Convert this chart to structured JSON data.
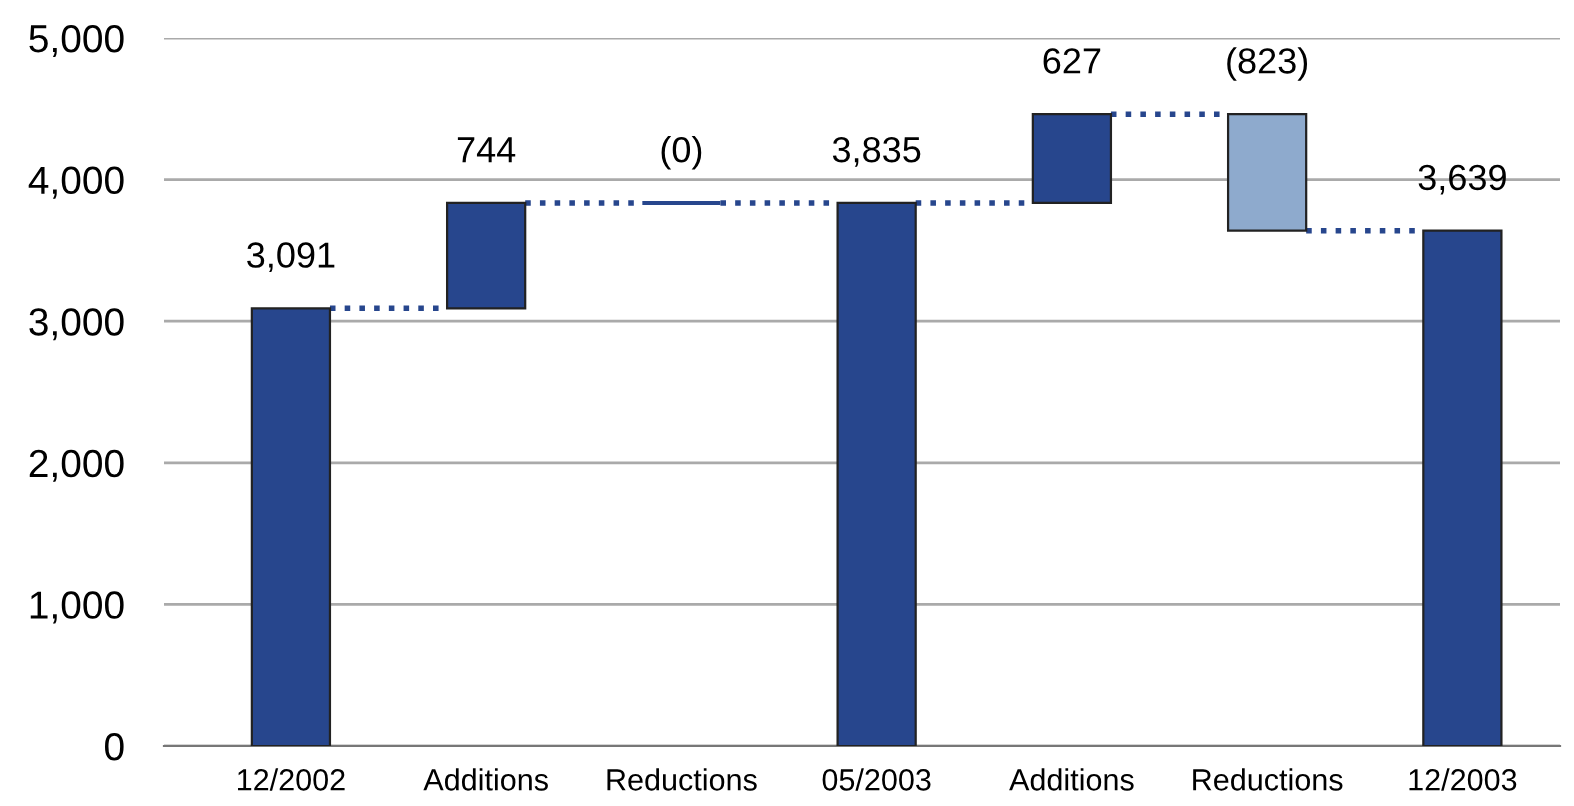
{
  "chart_data": {
    "type": "bar",
    "categories": [
      "12/2002",
      "Additions",
      "Reductions",
      "05/2003",
      "Additions",
      "Reductions",
      "12/2003"
    ],
    "values": [
      3091,
      744,
      0,
      3835,
      627,
      -823,
      3639
    ],
    "base": [
      0,
      3091,
      3835,
      0,
      3835,
      4462,
      0
    ],
    "colors": [
      "#27468d",
      "#27468d",
      "#27468d",
      "#27468d",
      "#27468d",
      "#8eaacd",
      "#27468d"
    ],
    "value_labels": [
      "3,091",
      "744",
      "(0)",
      "3,835",
      "627",
      "(823)",
      "3,639"
    ],
    "ylim": [
      0,
      5000
    ],
    "yticks": [
      {
        "value": 0,
        "label": "0"
      },
      {
        "value": 1000,
        "label": "1,000"
      },
      {
        "value": 2000,
        "label": "2,000"
      },
      {
        "value": 3000,
        "label": "3,000"
      },
      {
        "value": 4000,
        "label": "4,000"
      },
      {
        "value": 5000,
        "label": "5,000"
      }
    ],
    "grid": "y",
    "line_style": "dotted"
  }
}
